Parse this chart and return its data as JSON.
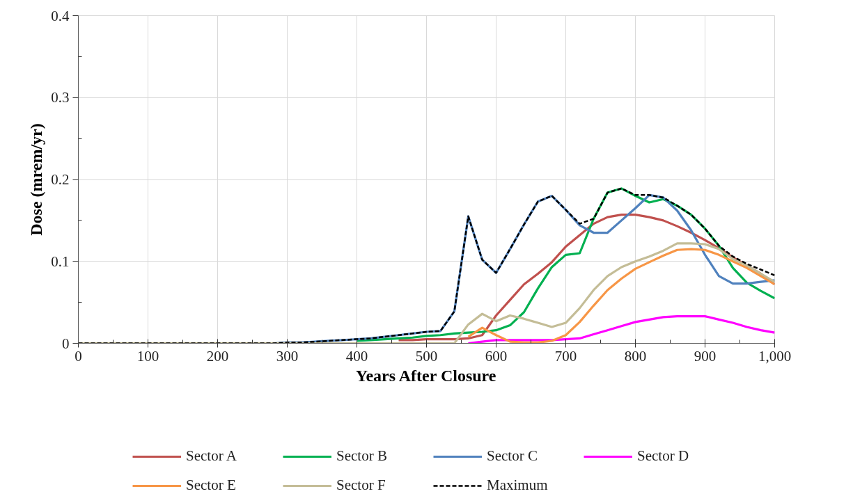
{
  "chart_data": {
    "type": "line",
    "xlabel": "Years After Closure",
    "ylabel": "Dose (mrem/yr)",
    "x": [
      0,
      20,
      40,
      60,
      80,
      100,
      120,
      140,
      160,
      180,
      200,
      220,
      240,
      260,
      280,
      300,
      320,
      340,
      360,
      380,
      400,
      420,
      440,
      460,
      480,
      500,
      520,
      540,
      560,
      580,
      600,
      620,
      640,
      660,
      680,
      700,
      720,
      740,
      760,
      780,
      800,
      820,
      840,
      860,
      880,
      900,
      920,
      940,
      960,
      980,
      1000
    ],
    "xlim": [
      0,
      1000
    ],
    "xticks": [
      0,
      {
        "value": 50,
        "label": null
      },
      100,
      {
        "value": 150,
        "label": null
      },
      200,
      {
        "value": 250,
        "label": null
      },
      300,
      {
        "value": 350,
        "label": null
      },
      400,
      {
        "value": 450,
        "label": null
      },
      500,
      {
        "value": 550,
        "label": null
      },
      600,
      {
        "value": 650,
        "label": null
      },
      700,
      {
        "value": 750,
        "label": null
      },
      800,
      {
        "value": 850,
        "label": null
      },
      900,
      {
        "value": 950,
        "label": null
      },
      {
        "value": 1000,
        "label": "1,000"
      }
    ],
    "ylim": [
      0,
      0.4
    ],
    "yticks": [
      0,
      {
        "value": 0.05,
        "label": null
      },
      0.1,
      {
        "value": 0.15,
        "label": null
      },
      0.2,
      {
        "value": 0.25,
        "label": null
      },
      0.3,
      {
        "value": 0.35,
        "label": null
      },
      0.4
    ],
    "grid": true,
    "legend": "bottom",
    "series": [
      {
        "name": "Sector A",
        "color": "#c0504d",
        "values": [
          null,
          null,
          null,
          null,
          null,
          null,
          null,
          null,
          null,
          null,
          null,
          null,
          null,
          null,
          null,
          null,
          null,
          null,
          null,
          null,
          null,
          null,
          null,
          0.004,
          0.004,
          0.005,
          0.005,
          0.005,
          0.006,
          0.01,
          0.034,
          0.053,
          0.072,
          0.085,
          0.099,
          0.118,
          0.132,
          0.146,
          0.154,
          0.157,
          0.157,
          0.154,
          0.15,
          0.143,
          0.135,
          0.126,
          0.116,
          0.105,
          0.095,
          0.085,
          0.072
        ]
      },
      {
        "name": "Sector B",
        "color": "#00b050",
        "values": [
          null,
          null,
          null,
          null,
          null,
          null,
          null,
          null,
          null,
          null,
          null,
          null,
          null,
          null,
          null,
          null,
          null,
          null,
          null,
          null,
          0.003,
          0.004,
          0.005,
          0.006,
          0.007,
          0.009,
          0.01,
          0.012,
          0.013,
          0.014,
          0.016,
          0.022,
          0.038,
          0.067,
          0.093,
          0.108,
          0.11,
          0.152,
          0.184,
          0.189,
          0.18,
          0.172,
          0.176,
          0.168,
          0.157,
          0.14,
          0.119,
          0.092,
          0.074,
          0.064,
          0.055
        ]
      },
      {
        "name": "Sector C",
        "color": "#4f81bd",
        "values": [
          null,
          null,
          null,
          null,
          null,
          null,
          null,
          null,
          null,
          null,
          null,
          null,
          null,
          null,
          0,
          0.001,
          0.001,
          0.002,
          0.003,
          0.004,
          0.005,
          0.006,
          0.008,
          0.01,
          0.012,
          0.014,
          0.015,
          0.039,
          0.155,
          0.102,
          0.086,
          0.115,
          0.145,
          0.173,
          0.18,
          0.163,
          0.144,
          0.135,
          0.135,
          0.15,
          0.165,
          0.181,
          0.178,
          0.162,
          0.138,
          0.108,
          0.082,
          0.073,
          0.073,
          0.075,
          0.077
        ]
      },
      {
        "name": "Sector D",
        "color": "#ff00ff",
        "values": [
          null,
          null,
          null,
          null,
          null,
          null,
          null,
          null,
          null,
          null,
          null,
          null,
          null,
          null,
          null,
          null,
          null,
          null,
          null,
          null,
          null,
          null,
          null,
          null,
          null,
          null,
          null,
          null,
          0,
          0.002,
          0.004,
          0.004,
          0.004,
          0.004,
          0.004,
          0.005,
          0.006,
          0.011,
          0.016,
          0.021,
          0.026,
          0.029,
          0.032,
          0.033,
          0.033,
          0.033,
          0.029,
          0.025,
          0.02,
          0.016,
          0.013
        ]
      },
      {
        "name": "Sector E",
        "color": "#f79646",
        "values": [
          null,
          null,
          null,
          null,
          null,
          null,
          null,
          null,
          null,
          null,
          null,
          null,
          null,
          null,
          null,
          null,
          null,
          null,
          null,
          null,
          null,
          null,
          null,
          null,
          null,
          null,
          null,
          null,
          0.008,
          0.019,
          0.01,
          0.002,
          0.001,
          0.001,
          0.003,
          0.01,
          0.026,
          0.046,
          0.065,
          0.079,
          0.091,
          0.099,
          0.107,
          0.114,
          0.115,
          0.114,
          0.108,
          0.1,
          0.092,
          0.082,
          0.072
        ]
      },
      {
        "name": "Sector F",
        "color": "#c4bd97",
        "values": [
          0,
          0,
          0,
          0,
          0,
          0,
          0,
          0,
          0,
          0,
          0,
          0,
          0,
          0,
          0,
          0,
          0,
          0,
          0,
          0,
          0,
          0,
          0,
          0,
          0,
          0,
          0,
          0,
          0.023,
          0.036,
          0.027,
          0.034,
          0.03,
          0.025,
          0.02,
          0.025,
          0.043,
          0.065,
          0.082,
          0.093,
          0.1,
          0.106,
          0.113,
          0.122,
          0.122,
          0.121,
          0.115,
          0.103,
          0.095,
          0.085,
          0.075
        ]
      },
      {
        "name": "Maximum",
        "color": "#000000",
        "line_style": "dashed",
        "values": [
          0,
          0,
          0,
          0,
          0,
          0,
          0,
          0,
          0,
          0,
          0,
          0,
          0,
          0,
          0,
          0.001,
          0.001,
          0.002,
          0.003,
          0.004,
          0.005,
          0.006,
          0.008,
          0.01,
          0.012,
          0.014,
          0.015,
          0.039,
          0.155,
          0.102,
          0.086,
          0.115,
          0.145,
          0.173,
          0.18,
          0.163,
          0.146,
          0.152,
          0.184,
          0.189,
          0.181,
          0.181,
          0.178,
          0.168,
          0.157,
          0.14,
          0.119,
          0.106,
          0.097,
          0.09,
          0.083
        ]
      }
    ]
  }
}
